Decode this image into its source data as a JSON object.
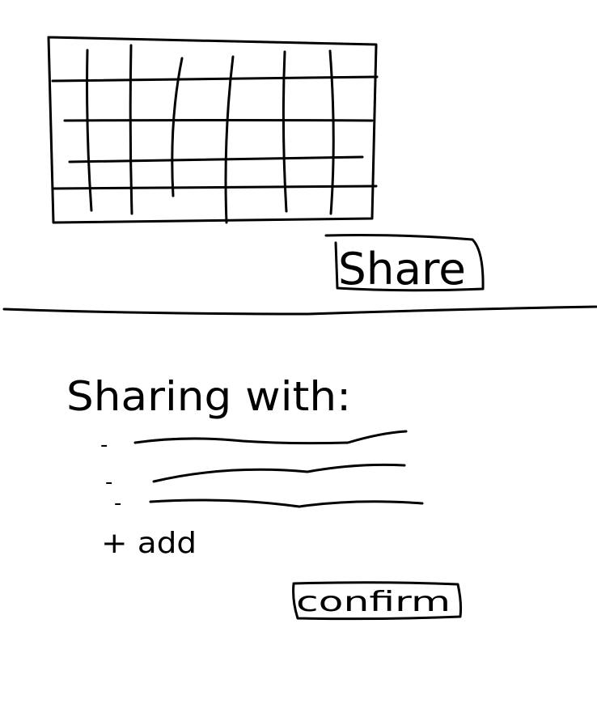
{
  "top_screen": {
    "share_button_label": "Share"
  },
  "bottom_screen": {
    "sharing_with_label": "Sharing with:",
    "sharing_list": [
      {
        "bullet": "-"
      },
      {
        "bullet": "-"
      },
      {
        "bullet": "-"
      }
    ],
    "add_label": "+ add",
    "confirm_button_label": "confirm"
  }
}
